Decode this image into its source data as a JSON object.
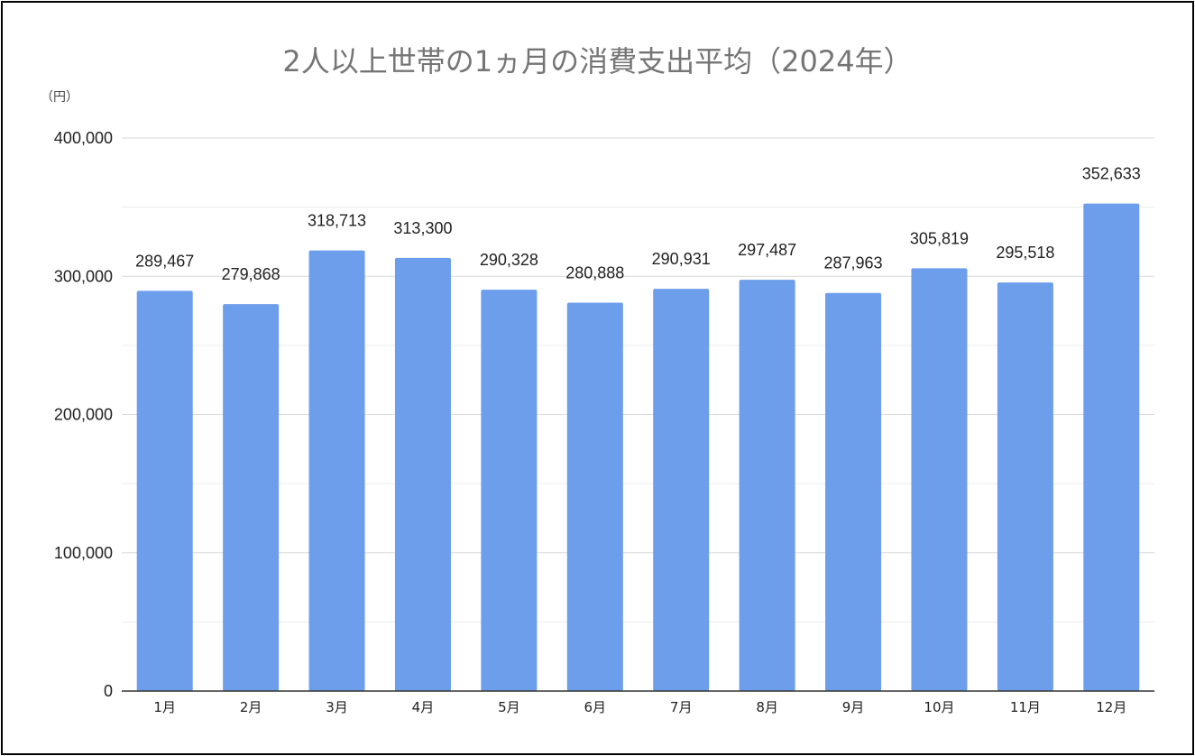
{
  "chart_data": {
    "type": "bar",
    "title": "2人以上世帯の1ヵ月の消費支出平均（2024年）",
    "unit_label": "（円）",
    "categories": [
      "1月",
      "2月",
      "3月",
      "4月",
      "5月",
      "6月",
      "7月",
      "8月",
      "9月",
      "10月",
      "11月",
      "12月"
    ],
    "values": [
      289467,
      279868,
      318713,
      313300,
      290328,
      280888,
      290931,
      297487,
      287963,
      305819,
      295518,
      352633
    ],
    "data_labels": [
      "289,467",
      "279,868",
      "318,713",
      "313,300",
      "290,328",
      "280,888",
      "290,931",
      "297,487",
      "287,963",
      "305,819",
      "295,518",
      "352,633"
    ],
    "ylim": [
      0,
      400000
    ],
    "y_ticks": [
      "0",
      "100,000",
      "200,000",
      "300,000",
      "400,000"
    ],
    "grid": true,
    "colors": {
      "bar": "#6d9eeb",
      "grid": "#d9d9d9",
      "axis": "#333333",
      "title": "#757575"
    }
  }
}
